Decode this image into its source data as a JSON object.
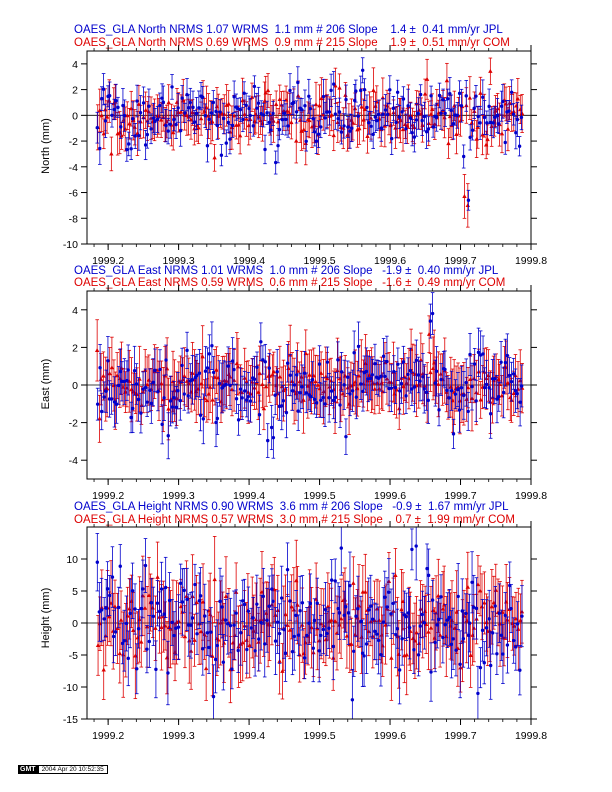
{
  "chart_data": [
    {
      "type": "scatter",
      "title": "",
      "xlabel": "",
      "ylabel": "North (mm)",
      "xlim": [
        1999.17,
        1999.8
      ],
      "ylim": [
        -10,
        5
      ],
      "x_ticks": [
        "1999.2",
        "1999.3",
        "1999.4",
        "1999.5",
        "1999.6",
        "1999.7",
        "1999.8"
      ],
      "y_ticks": [
        "4",
        "2",
        "0",
        "-2",
        "-4",
        "-6",
        "-8",
        "-10"
      ],
      "legend": [
        "OAES_GLA North NRMS 1.07 WRMS  1.1 mm # 206 Slope    1.4 ±  0.41 mm/yr JPL",
        "OAES_GLA North NRMS 0.69 WRMS  0.9 mm # 215 Slope    1.9 ±  0.51 mm/yr COM"
      ],
      "series": [
        {
          "color": "#0000cc",
          "count": 206,
          "scatter": 1.1,
          "sigma": 1.0,
          "outliers": [
            [
              1999.705,
              -3.2
            ],
            [
              1999.71,
              -6.6
            ],
            [
              1999.785,
              -2.4
            ],
            [
              1999.232,
              -2.6
            ],
            [
              1999.36,
              -3.1
            ],
            [
              1999.56,
              3.5
            ]
          ]
        },
        {
          "color": "#dd0000",
          "count": 215,
          "scatter": 0.9,
          "sigma": 1.3,
          "outliers": [
            [
              1999.712,
              -7.0
            ],
            [
              1999.706,
              -6.3
            ],
            [
              1999.205,
              -3.0
            ],
            [
              1999.651,
              2.8
            ],
            [
              1999.35,
              -3.3
            ]
          ]
        }
      ]
    },
    {
      "type": "scatter",
      "title": "",
      "xlabel": "",
      "ylabel": "East (mm)",
      "xlim": [
        1999.17,
        1999.8
      ],
      "ylim": [
        -5,
        5
      ],
      "x_ticks": [
        "1999.2",
        "1999.3",
        "1999.4",
        "1999.5",
        "1999.6",
        "1999.7",
        "1999.8"
      ],
      "y_ticks": [
        "4",
        "2",
        "0",
        "-2",
        "-4"
      ],
      "legend": [
        "OAES_GLA East NRMS 1.01 WRMS  1.0 mm # 206 Slope   -1.9 ±  0.40 mm/yr JPL",
        "OAES_GLA East NRMS 0.59 WRMS  0.6 mm # 215 Slope   -1.6 ±  0.49 mm/yr COM"
      ],
      "series": [
        {
          "color": "#0000cc",
          "count": 206,
          "scatter": 1.0,
          "sigma": 1.0,
          "outliers": [
            [
              1999.657,
              3.4
            ],
            [
              1999.66,
              3.8
            ],
            [
              1999.69,
              -2.6
            ],
            [
              1999.285,
              -2.7
            ],
            [
              1999.435,
              -2.8
            ]
          ]
        },
        {
          "color": "#dd0000",
          "count": 215,
          "scatter": 0.6,
          "sigma": 1.3,
          "outliers": [
            [
              1999.655,
              2.7
            ],
            [
              1999.63,
              1.9
            ],
            [
              1999.2,
              -0.2
            ]
          ]
        }
      ]
    },
    {
      "type": "scatter",
      "title": "",
      "xlabel": "",
      "ylabel": "Height (mm)",
      "xlim": [
        1999.17,
        1999.8
      ],
      "ylim": [
        -15,
        15
      ],
      "x_ticks": [
        "1999.2",
        "1999.3",
        "1999.4",
        "1999.5",
        "1999.6",
        "1999.7",
        "1999.8"
      ],
      "y_ticks": [
        "10",
        "5",
        "0",
        "-5",
        "-10",
        "-15"
      ],
      "legend": [
        "OAES_GLA Height NRMS 0.90 WRMS  3.6 mm # 206 Slope   -0.9 ±  1.67 mm/yr JPL",
        "OAES_GLA Height NRMS 0.57 WRMS  3.0 mm # 215 Slope    0.7 ±  1.99 mm/yr COM"
      ],
      "series": [
        {
          "color": "#0000cc",
          "count": 206,
          "scatter": 3.6,
          "sigma": 4.0,
          "outliers": [
            [
              1999.185,
              9.5
            ],
            [
              1999.63,
              11.5
            ],
            [
              1999.652,
              8.5
            ],
            [
              1999.545,
              -12.0
            ],
            [
              1999.725,
              -11.0
            ],
            [
              1999.35,
              -11.5
            ]
          ]
        },
        {
          "color": "#dd0000",
          "count": 215,
          "scatter": 3.0,
          "sigma": 5.0,
          "outliers": [
            [
              1999.185,
              -3.5
            ],
            [
              1999.52,
              -5.5
            ],
            [
              1999.7,
              -7.0
            ]
          ]
        }
      ]
    }
  ],
  "footer": {
    "logo": "GMT",
    "timestamp": "2004 Apr 20 10:52:35"
  }
}
